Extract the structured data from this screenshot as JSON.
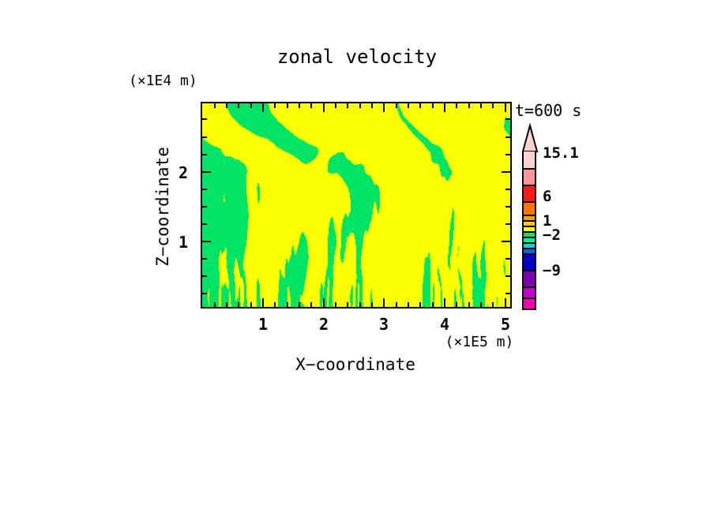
{
  "title": "zonal velocity",
  "annotation": {
    "time_label": "t=600 s"
  },
  "x_axis": {
    "axis_label": "X−coordinate",
    "unit_label": "(×1E5 m)",
    "min": 0,
    "max": 5.09,
    "minor_step": 0.2,
    "major_ticks": [
      1,
      2,
      3,
      4,
      5
    ],
    "tick_labels": [
      "1",
      "2",
      "3",
      "4",
      "5"
    ]
  },
  "y_axis": {
    "axis_label": "Z−coordinate",
    "unit_label": "(×1E4 m)",
    "min": 0.06,
    "max": 2.99,
    "minor_step": 0.25,
    "major_ticks": [
      1,
      2
    ],
    "tick_labels": [
      "1",
      "2"
    ]
  },
  "colorbar": {
    "arrow_color": "#FFD2D2",
    "labels": [
      {
        "text": "15.1",
        "y": 195
      },
      {
        "text": "6",
        "y": 250
      },
      {
        "text": "1",
        "y": 281
      },
      {
        "text": "−2",
        "y": 299
      },
      {
        "text": "−9",
        "y": 344
      }
    ],
    "segments": [
      {
        "color": "#FFD2D2",
        "h": 21
      },
      {
        "color": "#FF9494",
        "h": 21
      },
      {
        "color": "#FF1A1A",
        "h": 21
      },
      {
        "color": "#FF7300",
        "h": 17
      },
      {
        "color": "#FFA000",
        "h": 7
      },
      {
        "color": "#FFC800",
        "h": 7
      },
      {
        "color": "#FBFF00",
        "h": 7
      },
      {
        "color": "#00E465",
        "h": 7
      },
      {
        "color": "#00F596",
        "h": 7
      },
      {
        "color": "#00D8D8",
        "h": 7
      },
      {
        "color": "#0064E6",
        "h": 7
      },
      {
        "color": "#0000C8",
        "h": 21
      },
      {
        "color": "#7D00AF",
        "h": 21
      },
      {
        "color": "#C400C4",
        "h": 14
      },
      {
        "color": "#F200AC",
        "h": 14
      }
    ]
  },
  "chart_data": {
    "type": "heatmap",
    "title": "zonal velocity",
    "xlabel": "X−coordinate",
    "x_unit": "(×1E5 m)",
    "x_range": [
      0,
      5.1
    ],
    "ylabel": "Z−coordinate",
    "z_unit": "(×1E4 m)",
    "z_range": [
      0.06,
      3.0
    ],
    "time": "t=600 s",
    "colorbar_labels": [
      15.1,
      6,
      1,
      -2,
      -9
    ],
    "visible_field_colors": {
      "positive": "#FBFF00",
      "negative": "#00E465"
    },
    "description": "Two-level contour field of zonal velocity: broad alternating yellow (positive) and green (negative) convective columns in the upper two-thirds of the domain that break down into fine vertical filaments near the lower boundary.",
    "field_pattern": {
      "threshold": 0,
      "bias": 0.02,
      "octaves": [
        {
          "f": 5.5,
          "a0": 1.05,
          "a1": -0.6,
          "p": 1,
          "wob": 2.4,
          "wf": 2.2
        },
        {
          "f": 13,
          "a0": 0.8,
          "a1": -0.1,
          "p": 1,
          "wob": 1.8,
          "wf": 3.1
        },
        {
          "f": 32,
          "a0": 0.18,
          "a1": 1.0,
          "p": 2,
          "wob": 1.2,
          "wf": 5.3
        },
        {
          "f": 74,
          "a0": 0.02,
          "a1": 1.5,
          "p": 3.5,
          "wob": 0.8,
          "wf": 7.7
        },
        {
          "f": 140,
          "a0": 0.0,
          "a1": 1.25,
          "p": 6,
          "wob": 0.5,
          "wf": 9.5
        }
      ]
    }
  }
}
